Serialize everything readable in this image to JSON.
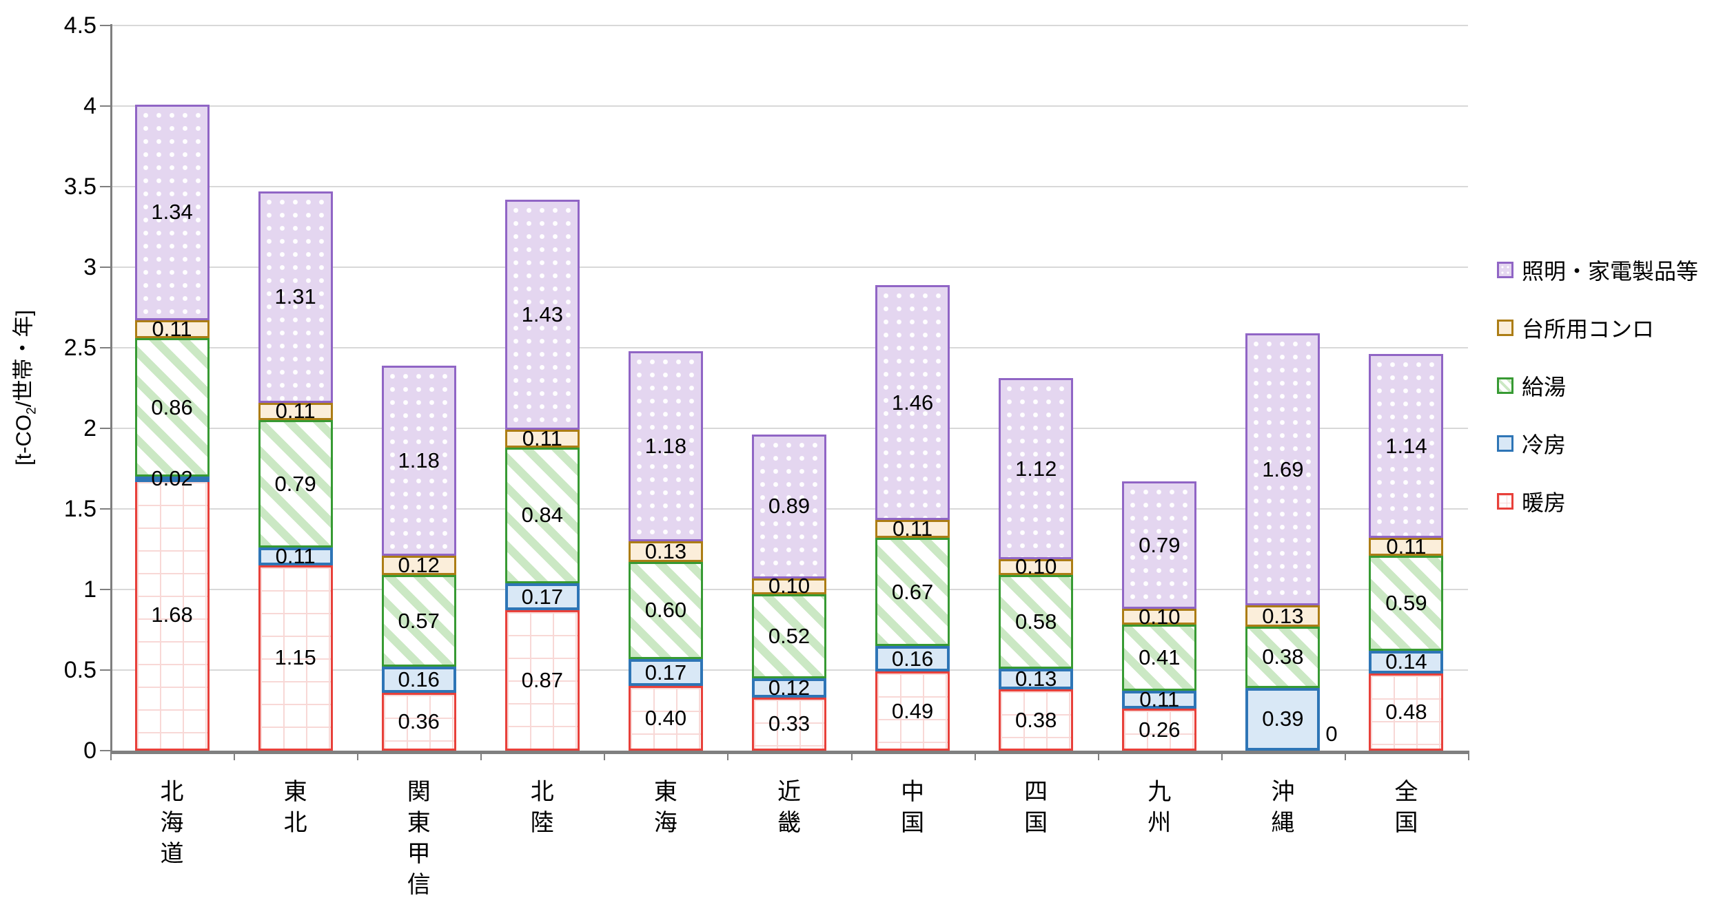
{
  "y_axis": {
    "title_prefix": "[t-CO",
    "title_sub": "2",
    "title_suffix": "/世帯・年]",
    "ticks": [
      "0",
      "0.5",
      "1",
      "1.5",
      "2",
      "2.5",
      "3",
      "3.5",
      "4",
      "4.5"
    ],
    "tick_step": 0.5
  },
  "chart_data": {
    "type": "bar",
    "stacked": true,
    "title": "",
    "xlabel": "",
    "ylabel": "[t-CO2/世帯・年]",
    "ylim": [
      0,
      4.5
    ],
    "grid": true,
    "legend_position": "right",
    "value_format": "0.00",
    "categories": [
      "北海道",
      "東北",
      "関東甲信",
      "北陸",
      "東海",
      "近畿",
      "中国",
      "四国",
      "九州",
      "沖縄",
      "全国"
    ],
    "series": [
      {
        "name": "暖房",
        "pattern": "grid",
        "color": "#e8403a",
        "values": [
          1.68,
          1.15,
          0.36,
          0.87,
          0.4,
          0.33,
          0.49,
          0.38,
          0.26,
          0,
          0.48
        ]
      },
      {
        "name": "冷房",
        "pattern": "solid-blue",
        "color": "#2e75b6",
        "values": [
          0.02,
          0.11,
          0.16,
          0.17,
          0.17,
          0.12,
          0.16,
          0.13,
          0.11,
          0.39,
          0.14
        ]
      },
      {
        "name": "給湯",
        "pattern": "stripes",
        "color": "#379a33",
        "values": [
          0.86,
          0.79,
          0.57,
          0.84,
          0.6,
          0.52,
          0.67,
          0.58,
          0.41,
          0.38,
          0.59
        ]
      },
      {
        "name": "台所用コンロ",
        "pattern": "solid-cream",
        "color": "#ac7d15",
        "values": [
          0.11,
          0.11,
          0.12,
          0.11,
          0.13,
          0.1,
          0.11,
          0.1,
          0.1,
          0.13,
          0.11
        ]
      },
      {
        "name": "照明・家電製品等",
        "pattern": "dots",
        "color": "#9065c5",
        "values": [
          1.34,
          1.31,
          1.18,
          1.43,
          1.18,
          0.89,
          1.46,
          1.12,
          0.79,
          1.69,
          1.14
        ]
      }
    ],
    "legend_order": [
      "照明・家電製品等",
      "台所用コンロ",
      "給湯",
      "冷房",
      "暖房"
    ],
    "colors": {
      "grid_line": "#d8d8d8",
      "axis_line": "#7f7f7f",
      "heating_fill_line": "#f8d8d6",
      "cooling_fill": "#d9e8f6",
      "water_stripe": "#cbe8c4",
      "stove_fill": "#fbeeda",
      "lighting_fill": "#e4d6f0"
    }
  }
}
